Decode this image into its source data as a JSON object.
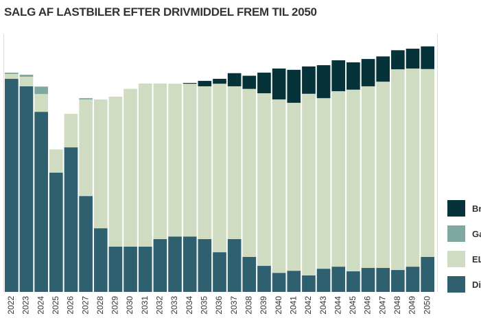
{
  "chart_data": {
    "type": "stacked-bar",
    "title": "SALG AF LASTBILER EFTER DRIVMIDDEL FREM TIL 2050",
    "categories": [
      "2022",
      "2023",
      "2024",
      "2025",
      "2026",
      "2027",
      "2028",
      "2029",
      "2030",
      "2031",
      "2032",
      "2033",
      "2034",
      "2035",
      "2036",
      "2037",
      "2038",
      "2039",
      "2040",
      "2041",
      "2042",
      "2043",
      "2044",
      "2045",
      "2046",
      "2047",
      "2048",
      "2049",
      "2050"
    ],
    "series": [
      {
        "name": "Die",
        "color": "#2e6070",
        "values": [
          82.7,
          79.8,
          69.9,
          46.3,
          56.1,
          37.2,
          24.7,
          17.6,
          17.6,
          17.6,
          20.5,
          21.5,
          21.5,
          20.5,
          15.4,
          20.5,
          13.6,
          10.1,
          7.4,
          8.2,
          6.4,
          9.0,
          9.8,
          8.0,
          9.3,
          9.3,
          8.5,
          9.8,
          13.6
        ]
      },
      {
        "name": "EL",
        "color": "#cfdcc2",
        "values": [
          1.9,
          3.7,
          6.9,
          9.0,
          13.0,
          37.5,
          50.0,
          58.2,
          61.2,
          63.3,
          60.4,
          59.3,
          59.3,
          59.3,
          65.4,
          59.3,
          65.2,
          67.0,
          67.3,
          65.2,
          70.5,
          66.2,
          68.1,
          70.5,
          70.5,
          72.3,
          77.9,
          76.9,
          72.9
        ]
      },
      {
        "name": "Ga",
        "color": "#7fa9a0",
        "values": [
          0.5,
          0.8,
          2.9,
          0,
          0,
          0.5,
          0,
          0,
          0,
          0,
          0,
          0,
          0,
          0,
          0,
          0,
          0,
          0,
          0,
          0,
          0,
          0,
          0,
          0,
          0,
          0,
          0,
          0,
          0
        ]
      },
      {
        "name": "Bri",
        "color": "#06323a",
        "values": [
          0,
          0,
          0,
          0,
          0,
          0,
          0,
          0,
          0,
          0,
          0,
          0,
          0.3,
          2.1,
          1.9,
          5.1,
          5.1,
          8.0,
          12.0,
          12.8,
          10.6,
          12.8,
          12.0,
          10.6,
          10.6,
          9.8,
          7.4,
          7.7,
          8.8
        ]
      }
    ],
    "ylim": [
      0,
      100
    ]
  }
}
